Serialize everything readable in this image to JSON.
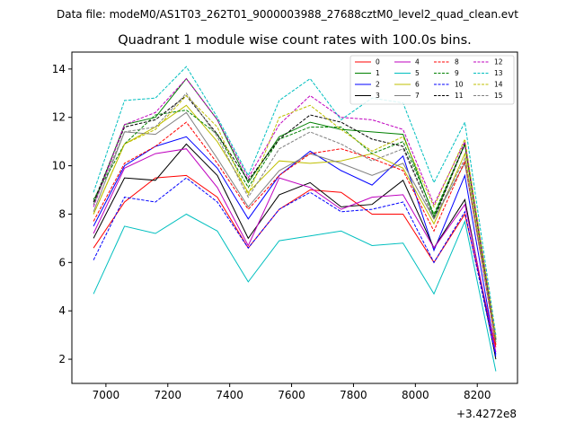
{
  "header": {
    "data_file": "Data file: modeM0/AS1T03_262T01_9000003988_27688cztM0_level2_quad_clean.evt"
  },
  "chart_data": {
    "type": "line",
    "title": "Quadrant 1 module wise count rates with 100.0s bins.",
    "xlabel": "",
    "ylabel": "",
    "x_offset_label": "+3.4272e8",
    "x": [
      6960,
      7060,
      7160,
      7260,
      7360,
      7460,
      7560,
      7660,
      7760,
      7860,
      7960,
      8060,
      8160,
      8260
    ],
    "xlim": [
      6890,
      8330
    ],
    "ylim": [
      1.0,
      14.7
    ],
    "xticks": [
      7000,
      7200,
      7400,
      7600,
      7800,
      8000,
      8200
    ],
    "yticks": [
      2,
      4,
      6,
      8,
      10,
      12,
      14
    ],
    "legend_position": "top-right",
    "series": [
      {
        "name": "0",
        "color": "#ff0000",
        "dash": "solid",
        "values": [
          6.6,
          8.5,
          9.5,
          9.6,
          8.7,
          6.6,
          8.2,
          9.0,
          8.9,
          8.0,
          8.0,
          6.0,
          8.0,
          2.5
        ]
      },
      {
        "name": "1",
        "color": "#008000",
        "dash": "solid",
        "values": [
          8.4,
          11.7,
          12.0,
          13.6,
          11.9,
          9.3,
          11.2,
          11.8,
          11.5,
          11.4,
          11.3,
          7.9,
          10.9,
          2.8
        ]
      },
      {
        "name": "2",
        "color": "#0000ff",
        "dash": "solid",
        "values": [
          7.5,
          10.0,
          10.8,
          11.2,
          9.9,
          7.8,
          9.6,
          10.6,
          9.8,
          9.2,
          10.4,
          6.5,
          9.6,
          2.2
        ]
      },
      {
        "name": "3",
        "color": "#000000",
        "dash": "solid",
        "values": [
          7.0,
          9.5,
          9.4,
          10.9,
          9.6,
          7.0,
          8.8,
          9.3,
          8.3,
          8.4,
          9.4,
          6.6,
          8.6,
          2.0
        ]
      },
      {
        "name": "4",
        "color": "#bf00bf",
        "dash": "solid",
        "values": [
          7.2,
          9.9,
          10.5,
          10.7,
          9.1,
          6.7,
          9.5,
          9.1,
          8.2,
          8.7,
          8.8,
          6.6,
          8.4,
          2.3
        ]
      },
      {
        "name": "5",
        "color": "#00bfbf",
        "dash": "solid",
        "values": [
          4.7,
          7.5,
          7.2,
          8.0,
          7.3,
          5.2,
          6.9,
          7.1,
          7.3,
          6.7,
          6.8,
          4.7,
          7.7,
          1.5
        ]
      },
      {
        "name": "6",
        "color": "#bfbf00",
        "dash": "solid",
        "values": [
          8.0,
          10.9,
          11.6,
          12.5,
          11.0,
          8.9,
          10.2,
          10.1,
          10.2,
          10.5,
          9.9,
          7.6,
          10.5,
          2.6
        ]
      },
      {
        "name": "7",
        "color": "#808080",
        "dash": "solid",
        "values": [
          8.1,
          11.4,
          11.3,
          12.2,
          10.3,
          8.3,
          9.8,
          10.5,
          10.1,
          9.6,
          10.1,
          7.8,
          10.1,
          2.7
        ]
      },
      {
        "name": "8",
        "color": "#ff0000",
        "dash": "dashed",
        "values": [
          7.7,
          10.1,
          10.8,
          11.8,
          10.1,
          8.2,
          9.6,
          10.5,
          10.7,
          10.3,
          9.8,
          7.3,
          10.2,
          2.6
        ]
      },
      {
        "name": "9",
        "color": "#008000",
        "dash": "dashed",
        "values": [
          8.6,
          10.9,
          12.1,
          12.3,
          11.3,
          9.1,
          11.1,
          11.6,
          11.6,
          10.5,
          11.0,
          8.0,
          10.9,
          2.8
        ]
      },
      {
        "name": "10",
        "color": "#0000ff",
        "dash": "dashed",
        "values": [
          6.1,
          8.7,
          8.5,
          9.5,
          8.5,
          6.6,
          8.2,
          8.9,
          8.1,
          8.2,
          8.5,
          6.0,
          8.1,
          2.1
        ]
      },
      {
        "name": "11",
        "color": "#000000",
        "dash": "dashed",
        "values": [
          8.5,
          11.6,
          11.9,
          12.9,
          11.3,
          9.4,
          11.1,
          12.1,
          11.8,
          11.1,
          10.8,
          7.8,
          10.9,
          2.8
        ]
      },
      {
        "name": "12",
        "color": "#bf00bf",
        "dash": "dashed",
        "values": [
          8.3,
          11.7,
          12.2,
          13.6,
          11.9,
          9.5,
          11.7,
          12.9,
          12.0,
          11.9,
          11.5,
          8.4,
          11.0,
          2.9
        ]
      },
      {
        "name": "13",
        "color": "#00bfbf",
        "dash": "dashed",
        "values": [
          8.9,
          12.7,
          12.8,
          14.1,
          12.0,
          9.6,
          12.7,
          13.6,
          11.9,
          12.8,
          12.6,
          9.3,
          11.8,
          3.0
        ]
      },
      {
        "name": "14",
        "color": "#bfbf00",
        "dash": "dashed",
        "values": [
          8.0,
          10.9,
          11.5,
          12.9,
          11.6,
          8.8,
          12.0,
          12.5,
          11.5,
          10.6,
          11.2,
          8.3,
          11.1,
          2.9
        ]
      },
      {
        "name": "15",
        "color": "#808080",
        "dash": "dashed",
        "values": [
          8.4,
          11.4,
          11.6,
          13.0,
          11.2,
          8.7,
          10.7,
          11.4,
          10.9,
          10.2,
          10.7,
          7.8,
          10.3,
          2.7
        ]
      }
    ]
  }
}
